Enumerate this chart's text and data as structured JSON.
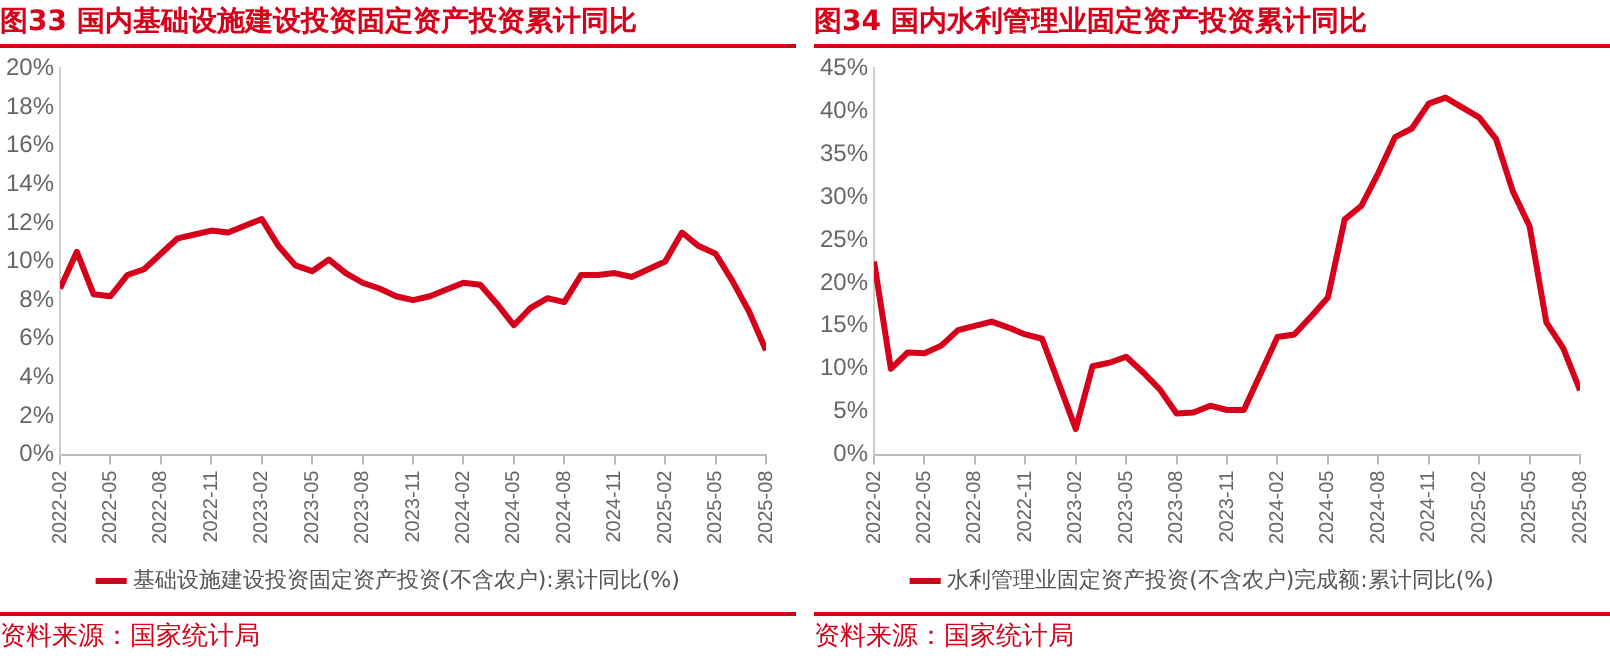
{
  "chart_data": [
    {
      "type": "line",
      "title": "图33  国内基础设施建设投资固定资产投资累计同比",
      "x": [
        "2022-02",
        "2022-03",
        "2022-04",
        "2022-05",
        "2022-06",
        "2022-07",
        "2022-08",
        "2022-09",
        "2022-10",
        "2022-11",
        "2022-12",
        "2023-02",
        "2023-03",
        "2023-04",
        "2023-05",
        "2023-06",
        "2023-07",
        "2023-08",
        "2023-09",
        "2023-10",
        "2023-11",
        "2023-12",
        "2024-02",
        "2024-03",
        "2024-04",
        "2024-05",
        "2024-06",
        "2024-07",
        "2024-08",
        "2024-09",
        "2024-10",
        "2024-11",
        "2024-12",
        "2025-02",
        "2025-03",
        "2025-04",
        "2025-05",
        "2025-06",
        "2025-07",
        "2025-08"
      ],
      "series": [
        {
          "name": "基础设施建设投资固定资产投资(不含农户):累计同比(%)",
          "color": "#d7001a",
          "values": [
            8.6,
            10.5,
            8.3,
            8.2,
            9.3,
            9.6,
            10.4,
            11.2,
            11.4,
            11.6,
            11.5,
            12.2,
            10.8,
            9.8,
            9.5,
            10.1,
            9.4,
            8.9,
            8.6,
            8.2,
            8.0,
            8.2,
            8.9,
            8.8,
            7.8,
            6.7,
            7.6,
            8.1,
            7.9,
            9.3,
            9.3,
            9.4,
            9.2,
            10.0,
            11.5,
            10.8,
            10.4,
            9.0,
            7.4,
            5.4
          ]
        }
      ],
      "xlim": [
        "2022-02",
        "2025-08"
      ],
      "xticks": [
        "2022-02",
        "2022-05",
        "2022-08",
        "2022-11",
        "2023-02",
        "2023-05",
        "2023-08",
        "2023-11",
        "2024-02",
        "2024-05",
        "2024-08",
        "2024-11",
        "2025-02",
        "2025-05",
        "2025-08"
      ],
      "ylim": [
        0,
        20
      ],
      "yticks": [
        {
          "value": 0,
          "label": "0%"
        },
        {
          "value": 2,
          "label": "2%"
        },
        {
          "value": 4,
          "label": "4%"
        },
        {
          "value": 6,
          "label": "6%"
        },
        {
          "value": 8,
          "label": "8%"
        },
        {
          "value": 10,
          "label": "10%"
        },
        {
          "value": 12,
          "label": "12%"
        },
        {
          "value": 14,
          "label": "14%"
        },
        {
          "value": 16,
          "label": "16%"
        },
        {
          "value": 18,
          "label": "18%"
        },
        {
          "value": 20,
          "label": "20%"
        }
      ],
      "grid": false,
      "legend": "bottom",
      "marker": "none",
      "line_style": "solid",
      "annotations": [
        "资料来源：国家统计局"
      ]
    },
    {
      "type": "line",
      "title": "图34  国内水利管理业固定资产投资累计同比",
      "x": [
        "2022-02",
        "2022-03",
        "2022-04",
        "2022-05",
        "2022-06",
        "2022-07",
        "2022-08",
        "2022-09",
        "2022-10",
        "2022-11",
        "2022-12",
        "2023-02",
        "2023-03",
        "2023-04",
        "2023-05",
        "2023-06",
        "2023-07",
        "2023-08",
        "2023-09",
        "2023-10",
        "2023-11",
        "2023-12",
        "2024-02",
        "2024-03",
        "2024-04",
        "2024-05",
        "2024-06",
        "2024-07",
        "2024-08",
        "2024-09",
        "2024-10",
        "2024-11",
        "2024-12",
        "2025-02",
        "2025-03",
        "2025-04",
        "2025-05",
        "2025-06",
        "2025-07",
        "2025-08"
      ],
      "series": [
        {
          "name": "水利管理业固定资产投资(不含农户)完成额:累计同比(%)",
          "color": "#d7001a",
          "values": [
            22.5,
            10.0,
            11.9,
            11.8,
            12.7,
            14.5,
            15.0,
            15.5,
            14.8,
            14.0,
            13.5,
            3.0,
            10.3,
            10.7,
            11.4,
            9.6,
            7.6,
            4.8,
            4.9,
            5.7,
            5.2,
            5.2,
            13.7,
            14.0,
            16.1,
            18.3,
            27.4,
            29.0,
            32.8,
            37.0,
            38.0,
            40.9,
            41.6,
            39.3,
            36.8,
            30.7,
            26.6,
            15.4,
            12.4,
            7.5
          ]
        }
      ],
      "xlim": [
        "2022-02",
        "2025-08"
      ],
      "xticks": [
        "2022-02",
        "2022-05",
        "2022-08",
        "2022-11",
        "2023-02",
        "2023-05",
        "2023-08",
        "2023-11",
        "2024-02",
        "2024-05",
        "2024-08",
        "2024-11",
        "2025-02",
        "2025-05",
        "2025-08"
      ],
      "ylim": [
        0,
        45
      ],
      "yticks": [
        {
          "value": 0,
          "label": "0%"
        },
        {
          "value": 5,
          "label": "5%"
        },
        {
          "value": 10,
          "label": "10%"
        },
        {
          "value": 15,
          "label": "15%"
        },
        {
          "value": 20,
          "label": "20%"
        },
        {
          "value": 25,
          "label": "25%"
        },
        {
          "value": 30,
          "label": "30%"
        },
        {
          "value": 35,
          "label": "35%"
        },
        {
          "value": 40,
          "label": "40%"
        },
        {
          "value": 45,
          "label": "45%"
        }
      ],
      "grid": false,
      "legend": "bottom",
      "marker": "none",
      "line_style": "solid",
      "annotations": [
        "资料来源：国家统计局"
      ]
    }
  ]
}
